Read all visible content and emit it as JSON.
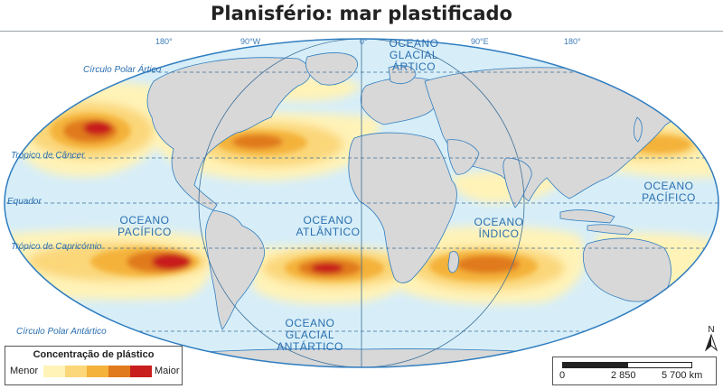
{
  "title": "Planisfério: mar plastificado",
  "colors": {
    "ocean": "#d7eef8",
    "land": "#d8d8d8",
    "coast": "#2f7dc0",
    "lines": "#3c6f99",
    "concentration_scale": [
      "#fff3b8",
      "#fbd77a",
      "#f4b23a",
      "#e07a1c",
      "#c81e1e"
    ]
  },
  "meridian_labels": [
    "180°",
    "90°W",
    "0°",
    "90°E",
    "180°"
  ],
  "parallel_labels": {
    "arctic": "Círculo Polar Ártico",
    "cancer": "Trópico de Câncer",
    "equator": "Equador",
    "capricorn": "Trópico de Capricórnio",
    "antarctic": "Círculo Polar Antártico"
  },
  "oceans": {
    "glacial_artico": [
      "OCEANO",
      "GLACIAL",
      "ÁRTICO"
    ],
    "pacifico_w": [
      "OCEANO",
      "PACÍFICO"
    ],
    "atlantico": [
      "OCEANO",
      "ATLÂNTICO"
    ],
    "indico": [
      "OCEANO",
      "ÍNDICO"
    ],
    "pacifico_e": [
      "OCEANO",
      "PACÍFICO"
    ],
    "glacial_antartico": [
      "OCEANO",
      "GLACIAL",
      "ANTÁRTICO"
    ]
  },
  "legend": {
    "title": "Concentração de plástico",
    "min_label": "Menor",
    "max_label": "Maior"
  },
  "scale_bar": {
    "ticks": [
      "0",
      "2 850",
      "5 700 km"
    ]
  },
  "north": "N"
}
